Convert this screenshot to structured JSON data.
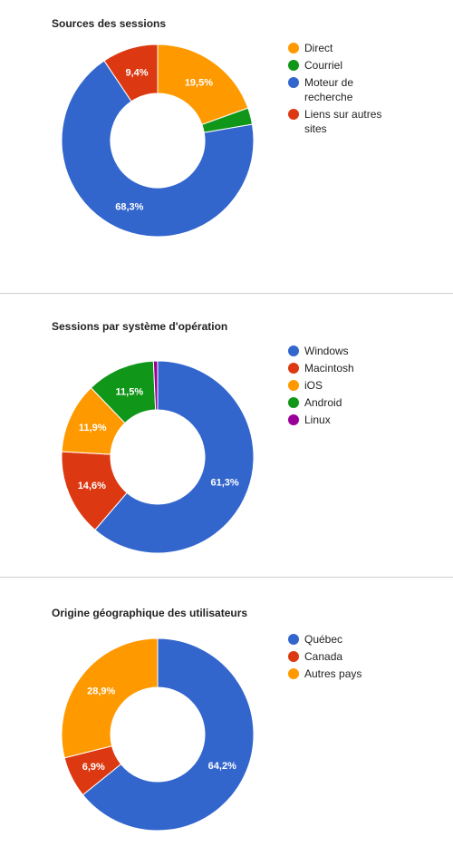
{
  "chart_data": [
    {
      "type": "pie",
      "donut": true,
      "title": "Sources des sessions",
      "legend_position": "right",
      "slices": [
        {
          "name": "Direct",
          "value": 19.5,
          "label": "19,5%",
          "color": "#ff9900"
        },
        {
          "name": "Courriel",
          "value": 2.8,
          "label": "",
          "color": "#109618"
        },
        {
          "name": "Moteur de recherche",
          "value": 68.3,
          "label": "68,3%",
          "color": "#3366cc"
        },
        {
          "name": "Liens sur autres sites",
          "value": 9.4,
          "label": "9,4%",
          "color": "#dc3912"
        }
      ]
    },
    {
      "type": "pie",
      "donut": true,
      "title": "Sessions par système d'opération",
      "legend_position": "right",
      "slices": [
        {
          "name": "Windows",
          "value": 61.3,
          "label": "61,3%",
          "color": "#3366cc"
        },
        {
          "name": "Macintosh",
          "value": 14.6,
          "label": "14,6%",
          "color": "#dc3912"
        },
        {
          "name": "iOS",
          "value": 11.9,
          "label": "11,9%",
          "color": "#ff9900"
        },
        {
          "name": "Android",
          "value": 11.5,
          "label": "11,5%",
          "color": "#109618"
        },
        {
          "name": "Linux",
          "value": 0.7,
          "label": "",
          "color": "#990099"
        }
      ]
    },
    {
      "type": "pie",
      "donut": true,
      "title": "Origine géographique des utilisateurs",
      "legend_position": "right",
      "slices": [
        {
          "name": "Québec",
          "value": 64.2,
          "label": "64,2%",
          "color": "#3366cc"
        },
        {
          "name": "Canada",
          "value": 6.9,
          "label": "6,9%",
          "color": "#dc3912"
        },
        {
          "name": "Autres pays",
          "value": 28.9,
          "label": "28,9%",
          "color": "#ff9900"
        }
      ]
    }
  ],
  "legend_wrap": [
    [
      [
        "Direct"
      ],
      [
        "Courriel"
      ],
      [
        "Moteur de",
        "recherche"
      ],
      [
        "Liens sur autres",
        "sites"
      ]
    ],
    [
      [
        "Windows"
      ],
      [
        "Macintosh"
      ],
      [
        "iOS"
      ],
      [
        "Android"
      ],
      [
        "Linux"
      ]
    ],
    [
      [
        "Québec"
      ],
      [
        "Canada"
      ],
      [
        "Autres pays"
      ]
    ]
  ]
}
